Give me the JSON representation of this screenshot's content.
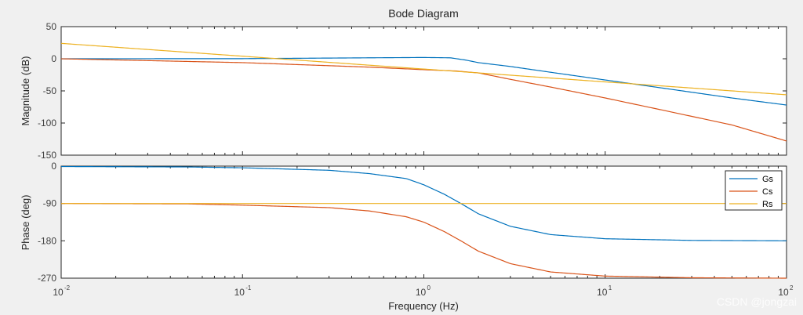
{
  "chart_data": {
    "type": "line",
    "title": "Bode Diagram",
    "xlabel": "Frequency  (Hz)",
    "xscale": "log",
    "xlim": [
      0.01,
      100
    ],
    "x_ticks": [
      {
        "base": "10",
        "exp": "-2",
        "value": 0.01
      },
      {
        "base": "10",
        "exp": "-1",
        "value": 0.1
      },
      {
        "base": "10",
        "exp": "0",
        "value": 1
      },
      {
        "base": "10",
        "exp": "1",
        "value": 10
      },
      {
        "base": "10",
        "exp": "2",
        "value": 100
      }
    ],
    "magnitude": {
      "ylabel": "Magnitude (dB)",
      "ylim": [
        -150,
        50
      ],
      "yticks": [
        50,
        0,
        -50,
        -100,
        -150
      ],
      "series": [
        {
          "name": "Gs",
          "color": "#0072BD",
          "points": [
            [
              0.01,
              0
            ],
            [
              0.1,
              0.2
            ],
            [
              0.5,
              1.5
            ],
            [
              1.0,
              2.0
            ],
            [
              1.4,
              1.5
            ],
            [
              1.7,
              -2
            ],
            [
              2,
              -6
            ],
            [
              3,
              -12
            ],
            [
              5,
              -21
            ],
            [
              10,
              -33
            ],
            [
              20,
              -45
            ],
            [
              50,
              -61
            ],
            [
              100,
              -72
            ]
          ]
        },
        {
          "name": "Cs",
          "color": "#D95319",
          "points": [
            [
              0.01,
              0
            ],
            [
              0.1,
              -6
            ],
            [
              0.5,
              -13
            ],
            [
              1.0,
              -17
            ],
            [
              1.5,
              -19
            ],
            [
              2,
              -22
            ],
            [
              3,
              -32
            ],
            [
              5,
              -44
            ],
            [
              10,
              -61
            ],
            [
              20,
              -79
            ],
            [
              50,
              -103
            ],
            [
              100,
              -128
            ]
          ]
        },
        {
          "name": "Rs",
          "color": "#EDB120",
          "points": [
            [
              0.01,
              24
            ],
            [
              0.1,
              4
            ],
            [
              1.0,
              -16
            ],
            [
              10,
              -36
            ],
            [
              100,
              -56
            ]
          ]
        }
      ]
    },
    "phase": {
      "ylabel": "Phase (deg)",
      "ylim": [
        -270,
        0
      ],
      "yticks": [
        0,
        -90,
        -180,
        -270
      ],
      "series": [
        {
          "name": "Gs",
          "color": "#0072BD",
          "points": [
            [
              0.01,
              -1
            ],
            [
              0.05,
              -2
            ],
            [
              0.1,
              -4
            ],
            [
              0.3,
              -10
            ],
            [
              0.5,
              -18
            ],
            [
              0.8,
              -30
            ],
            [
              1.0,
              -45
            ],
            [
              1.3,
              -68
            ],
            [
              1.6,
              -90
            ],
            [
              2,
              -115
            ],
            [
              3,
              -145
            ],
            [
              5,
              -165
            ],
            [
              10,
              -175
            ],
            [
              30,
              -179
            ],
            [
              100,
              -180
            ]
          ]
        },
        {
          "name": "Cs",
          "color": "#D95319",
          "points": [
            [
              0.01,
              -90
            ],
            [
              0.05,
              -91
            ],
            [
              0.1,
              -94
            ],
            [
              0.3,
              -100
            ],
            [
              0.5,
              -108
            ],
            [
              0.8,
              -122
            ],
            [
              1.0,
              -135
            ],
            [
              1.3,
              -158
            ],
            [
              1.6,
              -180
            ],
            [
              2,
              -205
            ],
            [
              3,
              -235
            ],
            [
              5,
              -255
            ],
            [
              10,
              -265
            ],
            [
              30,
              -269
            ],
            [
              100,
              -270
            ]
          ]
        },
        {
          "name": "Rs",
          "color": "#EDB120",
          "points": [
            [
              0.01,
              -90
            ],
            [
              100,
              -90
            ]
          ]
        }
      ]
    },
    "legend": {
      "entries": [
        "Gs",
        "Cs",
        "Rs"
      ],
      "location": "top-right of phase plot"
    }
  },
  "watermark": "CSDN @jongzai"
}
